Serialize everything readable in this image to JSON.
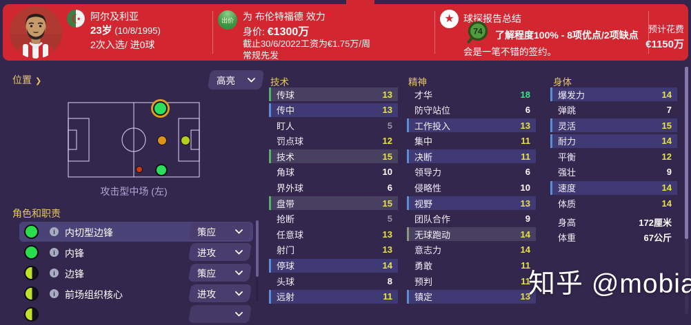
{
  "header": {
    "player": {
      "nationality": "阿尔及利亚",
      "flag": "algeria-flag",
      "age_bold": "23岁",
      "age_rest": " (10/8/1995)",
      "caps_line": "2次入选/ 进0球"
    },
    "club": {
      "bid_button": "出价",
      "club_line": "为 布伦特福德 效力",
      "value_label": "身价: ",
      "value_bold": "€1300万",
      "wage_line": "截止30/6/2022工资为€1.75万/周",
      "status_line": "常规先发"
    },
    "scout": {
      "title": "球探报告总结",
      "rating": "74",
      "knowledge_line": "了解程度100% - 8项优点/2项缺点",
      "verdict_line": "会是一笔不错的签约。",
      "cost_label": "预计花费",
      "cost_value": "€1150万"
    }
  },
  "left_panel": {
    "position_label": "位置",
    "position_chevron": "❯",
    "highlight_dropdown": "高亮",
    "pitch": {
      "caption": "攻击型中场 (左)",
      "dots": [
        {
          "name": "selected-position",
          "color": "#2ade5e",
          "ring": "#dd9e1e"
        },
        {
          "name": "accomplished-position",
          "color": "#dd9416"
        },
        {
          "name": "accomplished-position",
          "color": "#b3cf1f"
        },
        {
          "name": "awkward-position",
          "color": "#c63c10"
        },
        {
          "name": "natural-position",
          "color": "#2ade5e"
        }
      ]
    },
    "roles_title": "角色和职责",
    "roles": [
      {
        "name": "内切型边锋",
        "duty": "策应",
        "circle": "full",
        "selected": true
      },
      {
        "name": "内锋",
        "duty": "进攻",
        "circle": "full",
        "selected": false
      },
      {
        "name": "边锋",
        "duty": "策应",
        "circle": "half",
        "selected": false
      },
      {
        "name": "前场组织核心",
        "duty": "进攻",
        "circle": "half",
        "selected": false
      }
    ],
    "roles_partial_row": true
  },
  "attributes": {
    "technical": {
      "title": "技术",
      "rows": [
        {
          "label": "传球",
          "value": "13",
          "tone": "yellow",
          "row": "gray",
          "bar": "green"
        },
        {
          "label": "传中",
          "value": "13",
          "tone": "yellow",
          "row": "blue",
          "bar": "blue"
        },
        {
          "label": "盯人",
          "value": "5",
          "tone": "gray",
          "row": "plain",
          "bar": "none"
        },
        {
          "label": "罚点球",
          "value": "12",
          "tone": "yellow",
          "row": "plain",
          "bar": "none"
        },
        {
          "label": "技术",
          "value": "15",
          "tone": "yellow",
          "row": "gray",
          "bar": "green"
        },
        {
          "label": "角球",
          "value": "10",
          "tone": "white",
          "row": "plain",
          "bar": "none"
        },
        {
          "label": "界外球",
          "value": "6",
          "tone": "white",
          "row": "plain",
          "bar": "none"
        },
        {
          "label": "盘带",
          "value": "15",
          "tone": "yellow",
          "row": "gray",
          "bar": "green"
        },
        {
          "label": "抢断",
          "value": "5",
          "tone": "gray",
          "row": "plain",
          "bar": "none"
        },
        {
          "label": "任意球",
          "value": "13",
          "tone": "yellow",
          "row": "plain",
          "bar": "none"
        },
        {
          "label": "射门",
          "value": "13",
          "tone": "yellow",
          "row": "plain",
          "bar": "none"
        },
        {
          "label": "停球",
          "value": "14",
          "tone": "yellow",
          "row": "blue",
          "bar": "blue"
        },
        {
          "label": "头球",
          "value": "8",
          "tone": "white",
          "row": "plain",
          "bar": "none"
        },
        {
          "label": "远射",
          "value": "11",
          "tone": "yellow",
          "row": "blue",
          "bar": "blue"
        }
      ]
    },
    "mental": {
      "title": "精神",
      "rows": [
        {
          "label": "才华",
          "value": "18",
          "tone": "green",
          "row": "plain",
          "bar": "none"
        },
        {
          "label": "防守站位",
          "value": "6",
          "tone": "white",
          "row": "plain",
          "bar": "none"
        },
        {
          "label": "工作投入",
          "value": "13",
          "tone": "yellow",
          "row": "blue",
          "bar": "blue"
        },
        {
          "label": "集中",
          "value": "11",
          "tone": "yellow",
          "row": "plain",
          "bar": "none"
        },
        {
          "label": "决断",
          "value": "11",
          "tone": "yellow",
          "row": "blue",
          "bar": "blue"
        },
        {
          "label": "领导力",
          "value": "6",
          "tone": "white",
          "row": "plain",
          "bar": "none"
        },
        {
          "label": "侵略性",
          "value": "10",
          "tone": "white",
          "row": "plain",
          "bar": "none"
        },
        {
          "label": "视野",
          "value": "13",
          "tone": "yellow",
          "row": "blue",
          "bar": "blue"
        },
        {
          "label": "团队合作",
          "value": "9",
          "tone": "white",
          "row": "plain",
          "bar": "none"
        },
        {
          "label": "无球跑动",
          "value": "14",
          "tone": "yellow",
          "row": "gray",
          "bar": "graygreen"
        },
        {
          "label": "意志力",
          "value": "14",
          "tone": "yellow",
          "row": "plain",
          "bar": "none"
        },
        {
          "label": "勇敢",
          "value": "11",
          "tone": "yellow",
          "row": "plain",
          "bar": "none"
        },
        {
          "label": "预判",
          "value": "11",
          "tone": "yellow",
          "row": "plain",
          "bar": "none"
        },
        {
          "label": "镇定",
          "value": "13",
          "tone": "yellow",
          "row": "blue",
          "bar": "blue"
        }
      ]
    },
    "physical": {
      "title": "身体",
      "rows": [
        {
          "label": "爆发力",
          "value": "14",
          "tone": "yellow",
          "row": "blue",
          "bar": "blue"
        },
        {
          "label": "弹跳",
          "value": "7",
          "tone": "white",
          "row": "plain",
          "bar": "none"
        },
        {
          "label": "灵活",
          "value": "15",
          "tone": "yellow",
          "row": "blue",
          "bar": "blue"
        },
        {
          "label": "耐力",
          "value": "14",
          "tone": "yellow",
          "row": "blue",
          "bar": "blue"
        },
        {
          "label": "平衡",
          "value": "12",
          "tone": "yellow",
          "row": "plain",
          "bar": "none"
        },
        {
          "label": "强壮",
          "value": "9",
          "tone": "white",
          "row": "plain",
          "bar": "none"
        },
        {
          "label": "速度",
          "value": "14",
          "tone": "yellow",
          "row": "blue",
          "bar": "blue"
        },
        {
          "label": "体质",
          "value": "14",
          "tone": "yellow",
          "row": "plain",
          "bar": "none"
        }
      ],
      "extra": [
        {
          "label": "身高",
          "value": "172厘米"
        },
        {
          "label": "体重",
          "value": "67公斤"
        }
      ]
    }
  },
  "watermark": "知乎 @mobias",
  "colors": {
    "header_red": "#d22730",
    "page_bg": "#33274e",
    "gold": "#e5c766",
    "value_yellow": "#e8e243",
    "value_green": "#3fe383",
    "value_gray": "#97929f",
    "row_highlight_gray": "#474060",
    "row_highlight_blue": "#3f3a74",
    "bar_green": "#55b06a",
    "bar_blue": "#5b8dd6"
  }
}
